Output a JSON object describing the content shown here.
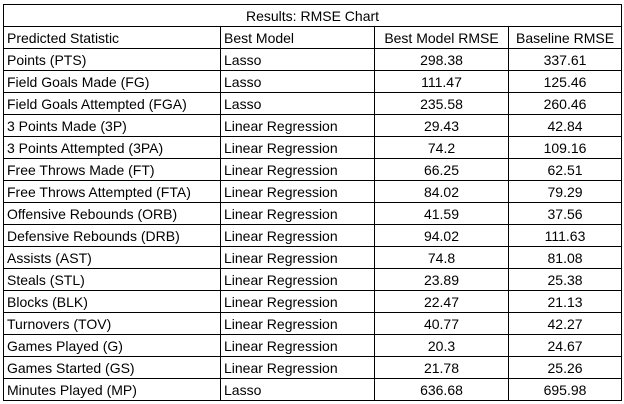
{
  "title": "Results: RMSE Chart",
  "columns": [
    "Predicted Statistic",
    "Best Model",
    "Best Model RMSE",
    "Baseline RMSE"
  ],
  "rows": [
    [
      "Points (PTS)",
      "Lasso",
      "298.38",
      "337.61"
    ],
    [
      "Field Goals Made (FG)",
      "Lasso",
      "111.47",
      "125.46"
    ],
    [
      "Field Goals Attempted (FGA)",
      "Lasso",
      "235.58",
      "260.46"
    ],
    [
      "3 Points Made (3P)",
      "Linear Regression",
      "29.43",
      "42.84"
    ],
    [
      "3 Points Attempted (3PA)",
      "Linear Regression",
      "74.2",
      "109.16"
    ],
    [
      "Free Throws Made (FT)",
      "Linear Regression",
      "66.25",
      "62.51"
    ],
    [
      "Free Throws Attempted (FTA)",
      "Linear Regression",
      "84.02",
      "79.29"
    ],
    [
      "Offensive Rebounds (ORB)",
      "Linear Regression",
      "41.59",
      "37.56"
    ],
    [
      "Defensive Rebounds (DRB)",
      "Linear Regression",
      "94.02",
      "111.63"
    ],
    [
      "Assists (AST)",
      "Linear Regression",
      "74.8",
      "81.08"
    ],
    [
      "Steals (STL)",
      "Linear Regression",
      "23.89",
      "25.38"
    ],
    [
      "Blocks (BLK)",
      "Linear Regression",
      "22.47",
      "21.13"
    ],
    [
      "Turnovers (TOV)",
      "Linear Regression",
      "40.77",
      "42.27"
    ],
    [
      "Games Played (G)",
      "Linear Regression",
      "20.3",
      "24.67"
    ],
    [
      "Games Started (GS)",
      "Linear Regression",
      "21.78",
      "25.26"
    ],
    [
      "Minutes Played (MP)",
      "Lasso",
      "636.68",
      "695.98"
    ]
  ]
}
